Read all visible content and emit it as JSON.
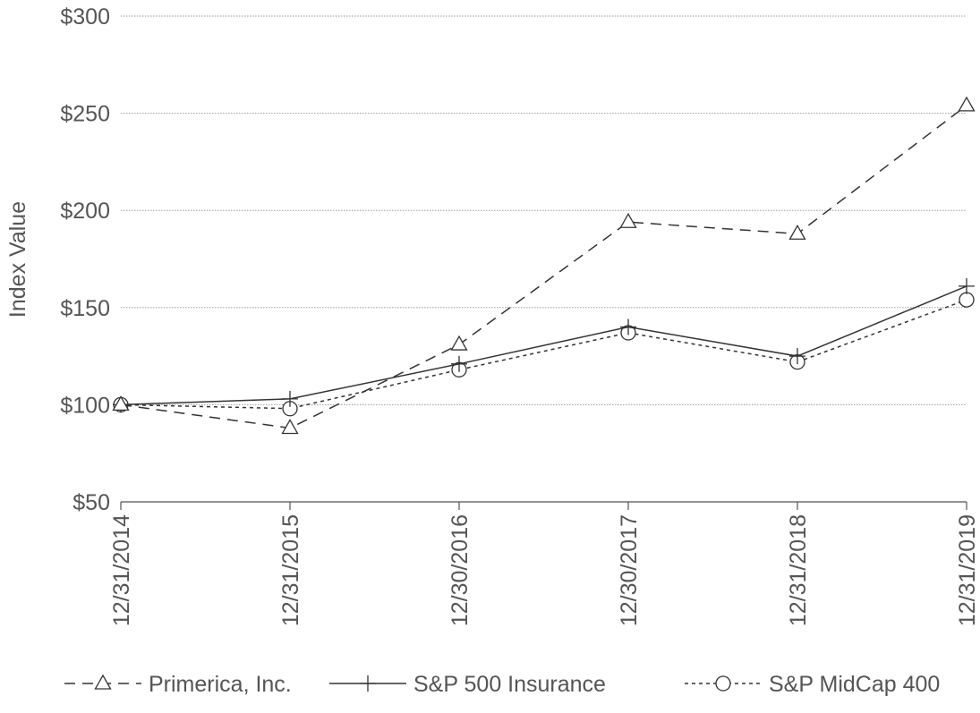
{
  "chart_data": {
    "type": "line",
    "title": "",
    "xlabel": "",
    "ylabel": "Index Value",
    "categories": [
      "12/31/2014",
      "12/31/2015",
      "12/30/2016",
      "12/30/2017",
      "12/31/2018",
      "12/31/2019"
    ],
    "ylim": [
      50,
      300
    ],
    "yticks": [
      "$50",
      "$100",
      "$150",
      "$200",
      "$250",
      "$300"
    ],
    "ytick_values": [
      50,
      100,
      150,
      200,
      250,
      300
    ],
    "grid": "horizontal dotted",
    "legend_position": "bottom",
    "series": [
      {
        "name": "Primerica, Inc.",
        "values": [
          100,
          88,
          131,
          194,
          188,
          254
        ],
        "line_style": "dashed",
        "marker": "triangle",
        "color": "#333333"
      },
      {
        "name": "S&P 500 Insurance",
        "values": [
          100,
          103,
          121,
          140,
          125,
          161
        ],
        "line_style": "solid",
        "marker": "plus",
        "color": "#333333"
      },
      {
        "name": "S&P MidCap 400",
        "values": [
          100,
          98,
          118,
          137,
          122,
          154
        ],
        "line_style": "dotted",
        "marker": "circle",
        "color": "#333333"
      }
    ]
  }
}
